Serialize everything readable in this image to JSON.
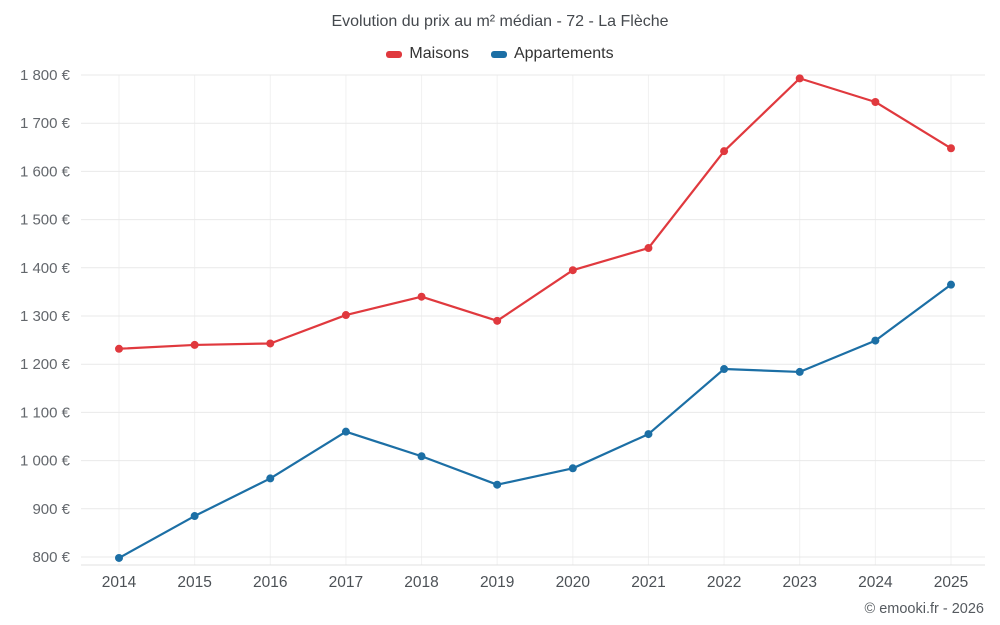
{
  "header": {
    "title": "Evolution du prix au m² médian - 72 - La Flèche"
  },
  "footer": {
    "text": "© emooki.fr - 2026"
  },
  "chart_data": {
    "type": "line",
    "title": "Evolution du prix au m² médian - 72 - La Flèche",
    "categories": [
      "2014",
      "2015",
      "2016",
      "2017",
      "2018",
      "2019",
      "2020",
      "2021",
      "2022",
      "2023",
      "2024",
      "2025"
    ],
    "series": [
      {
        "name": "Maisons",
        "color": "#e0393e",
        "values": [
          1232,
          1240,
          1243,
          1302,
          1340,
          1290,
          1395,
          1441,
          1642,
          1793,
          1744,
          1648
        ]
      },
      {
        "name": "Appartements",
        "color": "#1c6fa5",
        "values": [
          798,
          885,
          963,
          1060,
          1009,
          950,
          984,
          1055,
          1190,
          1184,
          1249,
          1365
        ]
      }
    ],
    "xlabel": "",
    "ylabel": "",
    "ylim": [
      800,
      1800
    ],
    "y_ticks": [
      800,
      900,
      1000,
      1100,
      1200,
      1300,
      1400,
      1500,
      1600,
      1700,
      1800
    ],
    "y_tick_labels": [
      "800 €",
      "900 €",
      "1 000 €",
      "1 100 €",
      "1 200 €",
      "1 300 €",
      "1 400 €",
      "1 500 €",
      "1 600 €",
      "1 700 €",
      "1 800 €"
    ],
    "grid": true,
    "legend_position": "top"
  }
}
